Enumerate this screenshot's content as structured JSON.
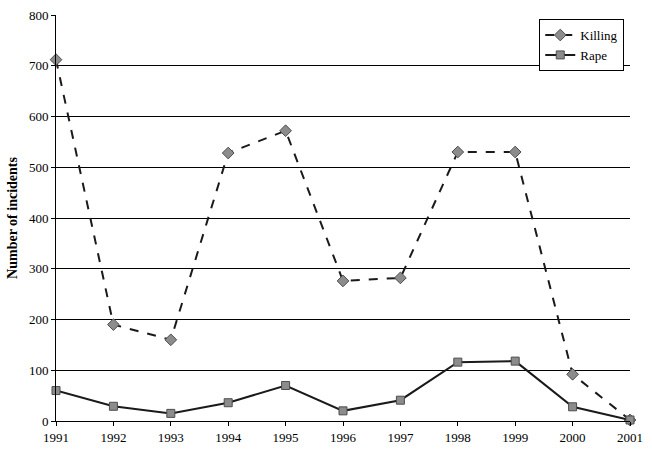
{
  "chart_data": {
    "type": "line",
    "y_label": "Number of incidents",
    "x": [
      1991,
      1992,
      1993,
      1994,
      1995,
      1996,
      1997,
      1998,
      1999,
      2000,
      2001
    ],
    "series": [
      {
        "name": "Killing",
        "color": "#8c8c8c",
        "marker": "diamond",
        "line_style": "dash",
        "values": [
          712,
          190,
          160,
          528,
          572,
          276,
          282,
          530,
          530,
          92,
          2
        ]
      },
      {
        "name": "Rape",
        "color": "#8c8c8c",
        "marker": "square",
        "line_style": "solid",
        "values": [
          60,
          29,
          15,
          36,
          70,
          20,
          41,
          116,
          118,
          28,
          2
        ]
      }
    ],
    "xlim": [
      1991,
      2001
    ],
    "xticks": [
      1991,
      1992,
      1993,
      1994,
      1995,
      1996,
      1997,
      1998,
      1999,
      2000,
      2001
    ],
    "ylim": [
      0,
      800
    ],
    "yticks": [
      0,
      100,
      200,
      300,
      400,
      500,
      600,
      700,
      800
    ],
    "grid": true,
    "legend": "top-right"
  }
}
